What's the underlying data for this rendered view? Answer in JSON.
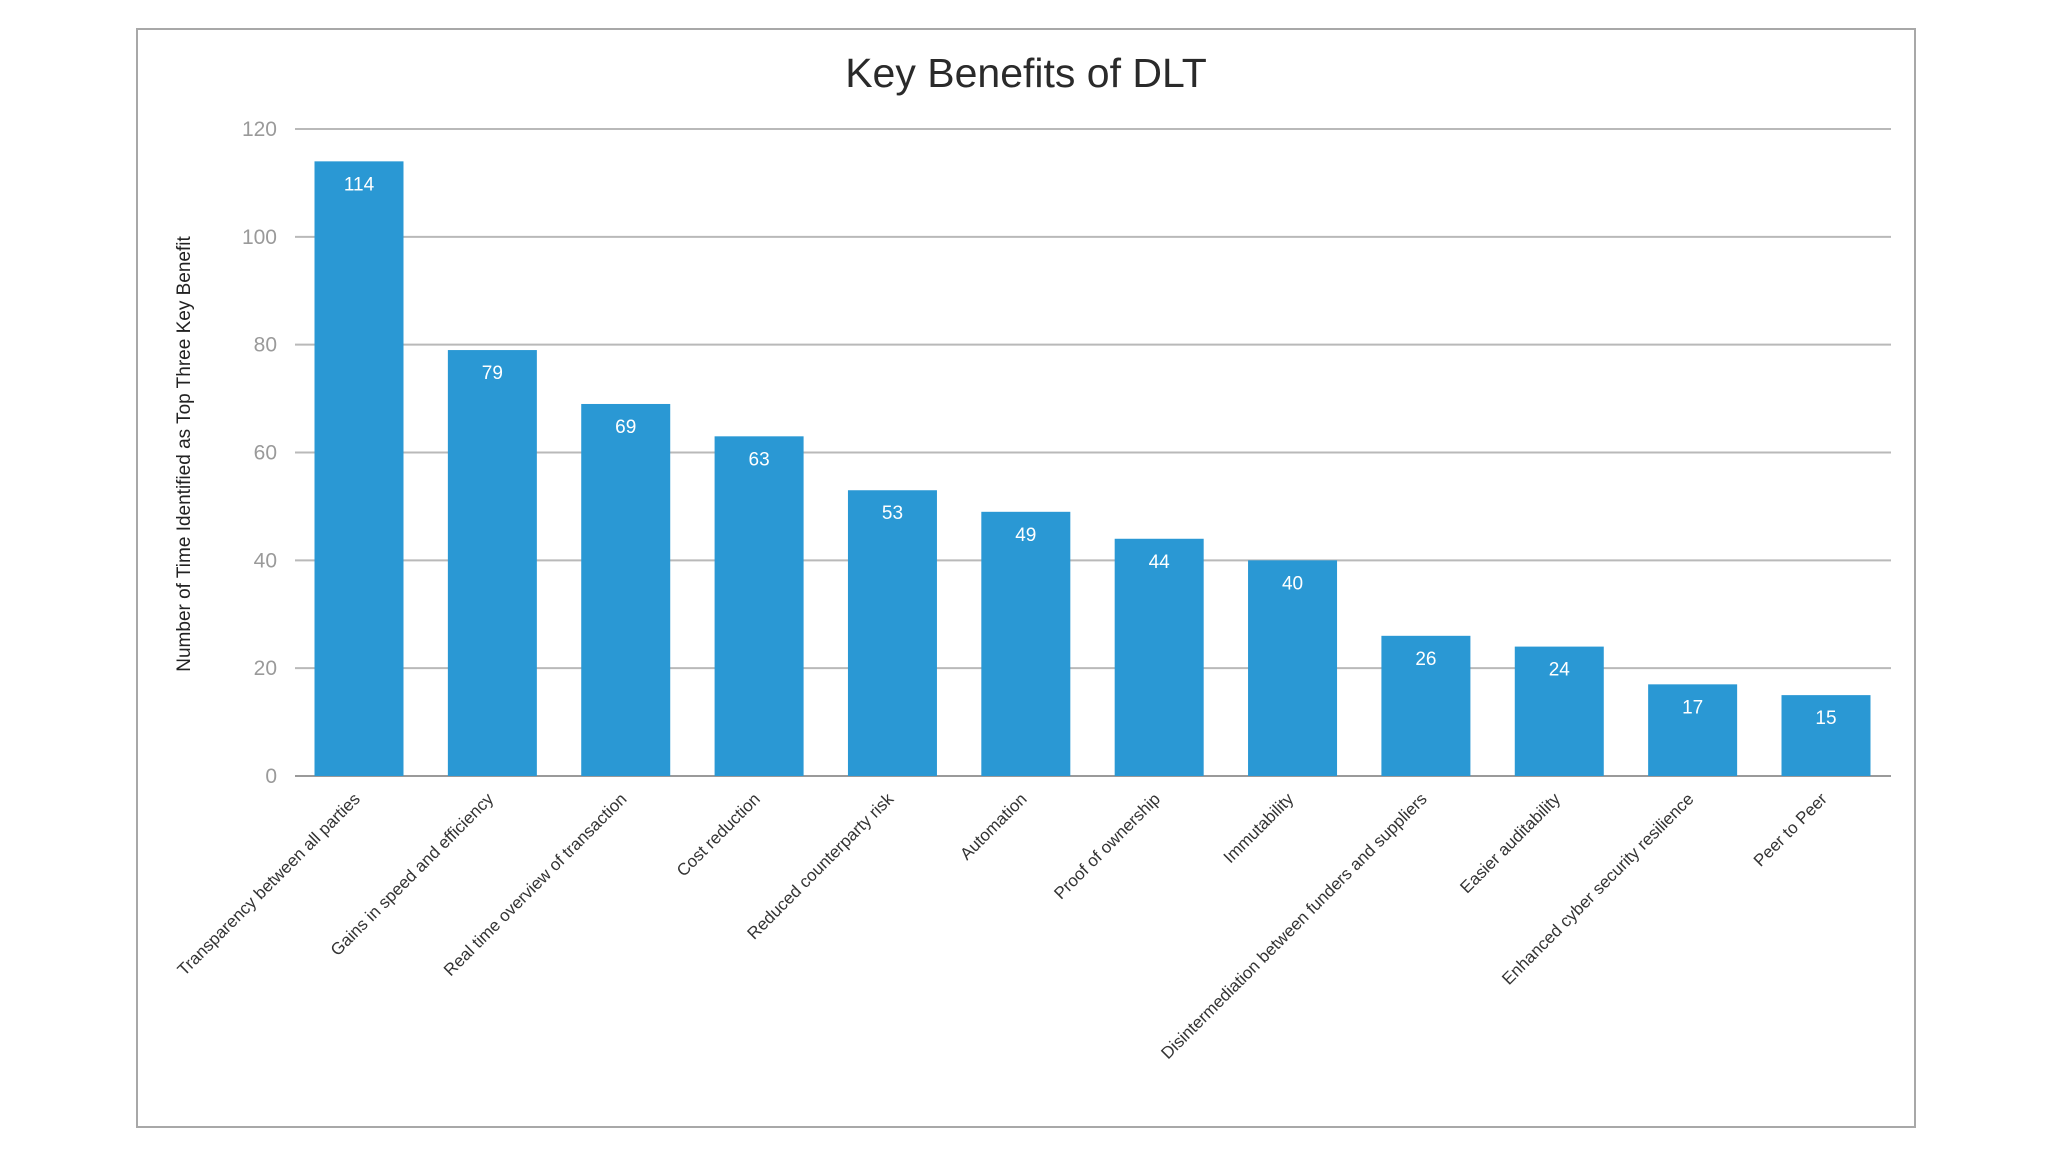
{
  "chart_data": {
    "type": "bar",
    "title": "Key Benefits of DLT",
    "xlabel": "",
    "ylabel": "Number of Time Identified as Top Three Key Benefit",
    "ylim": [
      0,
      120
    ],
    "yticks": [
      0,
      20,
      40,
      60,
      80,
      100,
      120
    ],
    "grid": true,
    "legend": "none",
    "colors": {
      "bar": "#2a98d4"
    },
    "categories": [
      "Transparency between all parties",
      "Gains in speed and efficiency",
      "Real time overview of transaction",
      "Cost reduction",
      "Reduced counterparty risk",
      "Automation",
      "Proof of ownership",
      "Immutability",
      "Disintermediation between funders and suppliers",
      "Easier auditability",
      "Enhanced cyber security resilience",
      "Peer to Peer"
    ],
    "values": [
      114,
      79,
      69,
      63,
      53,
      49,
      44,
      40,
      26,
      24,
      17,
      15
    ]
  }
}
